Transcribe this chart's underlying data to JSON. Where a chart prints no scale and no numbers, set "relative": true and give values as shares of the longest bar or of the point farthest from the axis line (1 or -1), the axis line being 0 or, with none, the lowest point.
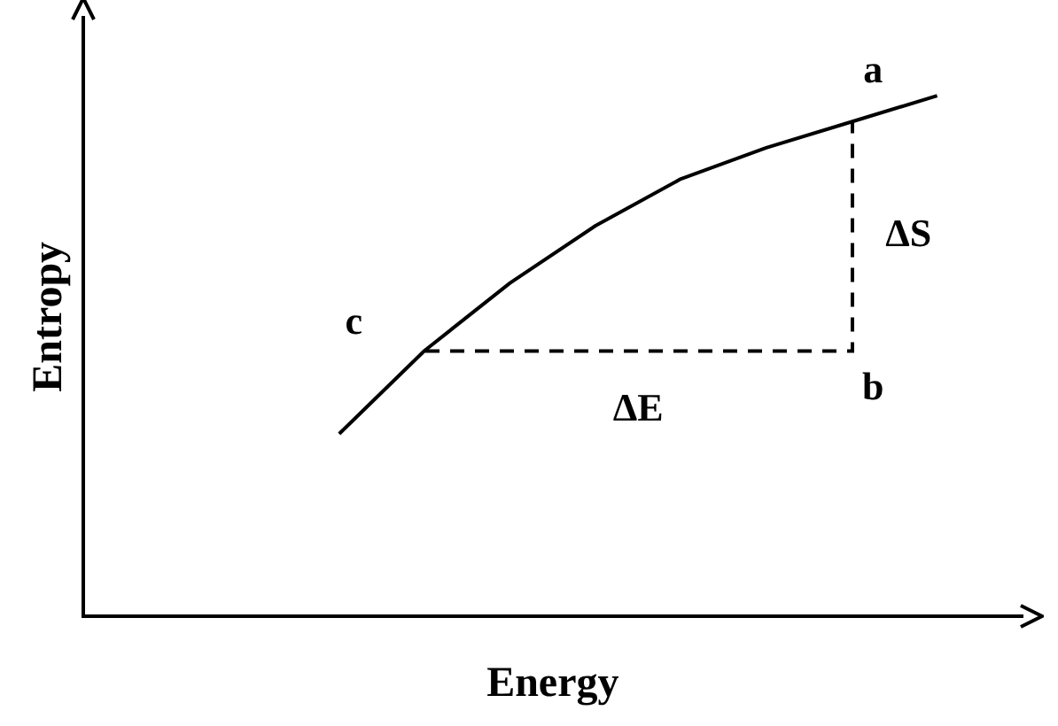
{
  "chart_data": {
    "type": "line",
    "relative": true,
    "xlabel": "Energy",
    "ylabel": "Entropy",
    "grid": false,
    "legend": false,
    "marker": "none",
    "categories": [
      null,
      null,
      null,
      null,
      null,
      null,
      null,
      null,
      null,
      null,
      null,
      null
    ],
    "series": [
      {
        "color": "#000000",
        "values": [
          null,
          null,
          null,
          0.35,
          0.51,
          0.64,
          0.75,
          0.84,
          0.9,
          0.95,
          1,
          null
        ]
      }
    ],
    "annotations": [
      "a",
      "b",
      "c",
      "ΔS",
      "ΔE"
    ]
  }
}
